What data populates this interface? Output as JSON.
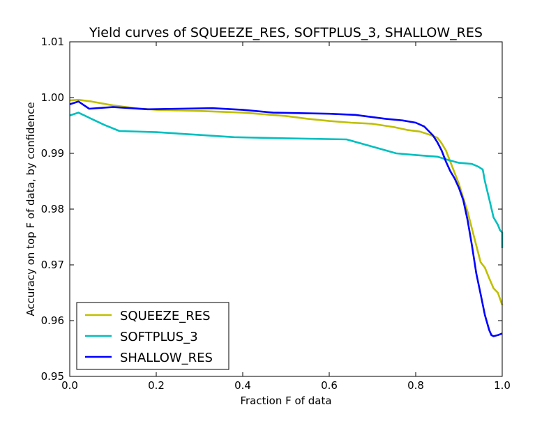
{
  "chart_data": {
    "type": "line",
    "title": "Yield curves of SQUEEZE_RES, SOFTPLUS_3, SHALLOW_RES",
    "xlabel": "Fraction F of data",
    "ylabel": "Accuracy on top F of data, by confidence",
    "xlim": [
      0.0,
      1.0
    ],
    "ylim": [
      0.95,
      1.01
    ],
    "xticks": [
      "0.0",
      "0.2",
      "0.4",
      "0.6",
      "0.8",
      "1.0"
    ],
    "yticks": [
      "0.95",
      "0.96",
      "0.97",
      "0.98",
      "0.99",
      "1.00",
      "1.01"
    ],
    "grid": false,
    "legend_position": "lower-left",
    "series": [
      {
        "name": "SQUEEZE_RES",
        "color": "#bfbf00",
        "points": [
          [
            0.0,
            0.9995
          ],
          [
            0.02,
            0.9996
          ],
          [
            0.05,
            0.9993
          ],
          [
            0.1,
            0.9986
          ],
          [
            0.15,
            0.9981
          ],
          [
            0.2,
            0.9978
          ],
          [
            0.3,
            0.9976
          ],
          [
            0.4,
            0.9973
          ],
          [
            0.5,
            0.9967
          ],
          [
            0.55,
            0.9962
          ],
          [
            0.6,
            0.9958
          ],
          [
            0.65,
            0.9955
          ],
          [
            0.7,
            0.9953
          ],
          [
            0.75,
            0.9947
          ],
          [
            0.78,
            0.9942
          ],
          [
            0.81,
            0.9939
          ],
          [
            0.83,
            0.9934
          ],
          [
            0.85,
            0.9928
          ],
          [
            0.86,
            0.9918
          ],
          [
            0.87,
            0.9905
          ],
          [
            0.88,
            0.9885
          ],
          [
            0.89,
            0.9865
          ],
          [
            0.9,
            0.9845
          ],
          [
            0.91,
            0.982
          ],
          [
            0.92,
            0.9795
          ],
          [
            0.93,
            0.9765
          ],
          [
            0.94,
            0.9735
          ],
          [
            0.95,
            0.9705
          ],
          [
            0.96,
            0.9695
          ],
          [
            0.97,
            0.9676
          ],
          [
            0.98,
            0.9658
          ],
          [
            0.99,
            0.965
          ],
          [
            1.0,
            0.9628
          ]
        ]
      },
      {
        "name": "SOFTPLUS_3",
        "color": "#00bfbf",
        "points": [
          [
            0.0,
            0.9968
          ],
          [
            0.02,
            0.9973
          ],
          [
            0.05,
            0.9962
          ],
          [
            0.08,
            0.9951
          ],
          [
            0.115,
            0.994
          ],
          [
            0.2,
            0.9938
          ],
          [
            0.3,
            0.9933
          ],
          [
            0.38,
            0.9929
          ],
          [
            0.5,
            0.9927
          ],
          [
            0.64,
            0.9925
          ],
          [
            0.7,
            0.9912
          ],
          [
            0.755,
            0.99
          ],
          [
            0.8,
            0.9897
          ],
          [
            0.85,
            0.9894
          ],
          [
            0.88,
            0.9887
          ],
          [
            0.9,
            0.9883
          ],
          [
            0.93,
            0.9881
          ],
          [
            0.945,
            0.9876
          ],
          [
            0.955,
            0.9871
          ],
          [
            0.96,
            0.985
          ],
          [
            0.97,
            0.9818
          ],
          [
            0.98,
            0.9785
          ],
          [
            0.99,
            0.9772
          ],
          [
            0.995,
            0.9762
          ],
          [
            1.0,
            0.9758
          ],
          [
            1.0,
            0.973
          ]
        ]
      },
      {
        "name": "SHALLOW_RES",
        "color": "#0000ff",
        "points": [
          [
            0.0,
            0.9988
          ],
          [
            0.02,
            0.9993
          ],
          [
            0.045,
            0.998
          ],
          [
            0.1,
            0.9983
          ],
          [
            0.18,
            0.9979
          ],
          [
            0.25,
            0.998
          ],
          [
            0.33,
            0.9981
          ],
          [
            0.4,
            0.9978
          ],
          [
            0.47,
            0.9973
          ],
          [
            0.6,
            0.9971
          ],
          [
            0.66,
            0.9969
          ],
          [
            0.73,
            0.9962
          ],
          [
            0.77,
            0.9959
          ],
          [
            0.8,
            0.9955
          ],
          [
            0.82,
            0.9948
          ],
          [
            0.84,
            0.9932
          ],
          [
            0.85,
            0.992
          ],
          [
            0.86,
            0.9905
          ],
          [
            0.87,
            0.9885
          ],
          [
            0.88,
            0.9868
          ],
          [
            0.89,
            0.9855
          ],
          [
            0.9,
            0.9838
          ],
          [
            0.91,
            0.9816
          ],
          [
            0.92,
            0.978
          ],
          [
            0.93,
            0.9735
          ],
          [
            0.94,
            0.9685
          ],
          [
            0.95,
            0.9648
          ],
          [
            0.96,
            0.961
          ],
          [
            0.97,
            0.9583
          ],
          [
            0.975,
            0.9574
          ],
          [
            0.98,
            0.9572
          ],
          [
            0.99,
            0.9574
          ],
          [
            1.0,
            0.9577
          ]
        ]
      }
    ]
  }
}
